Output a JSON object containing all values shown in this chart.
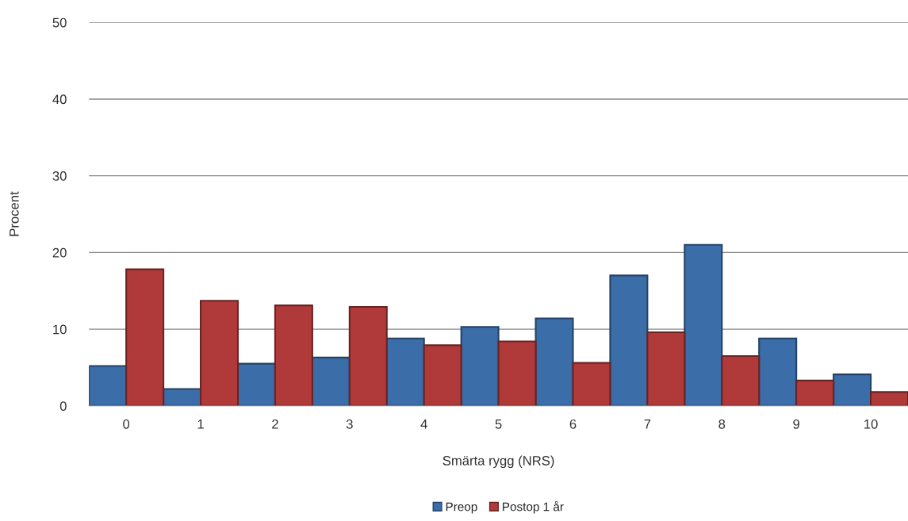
{
  "chart_data": {
    "type": "bar",
    "xlabel": "Smärta rygg (NRS)",
    "ylabel": "Procent",
    "categories": [
      "0",
      "1",
      "2",
      "3",
      "4",
      "5",
      "6",
      "7",
      "8",
      "9",
      "10"
    ],
    "series": [
      {
        "name": "Preop",
        "color": "#3b6ea8",
        "values": [
          5.2,
          2.2,
          5.5,
          6.3,
          8.8,
          10.3,
          11.4,
          17.0,
          21.0,
          8.8,
          4.1
        ]
      },
      {
        "name": "Postop 1 år",
        "color": "#b03a3a",
        "values": [
          17.8,
          13.7,
          13.1,
          12.9,
          7.9,
          8.4,
          5.6,
          9.6,
          6.5,
          3.3,
          1.8
        ]
      }
    ],
    "ylim": [
      0,
      50
    ],
    "yticks": [
      0,
      10,
      20,
      30,
      40,
      50
    ],
    "grid": "y",
    "legend": "bottom"
  }
}
